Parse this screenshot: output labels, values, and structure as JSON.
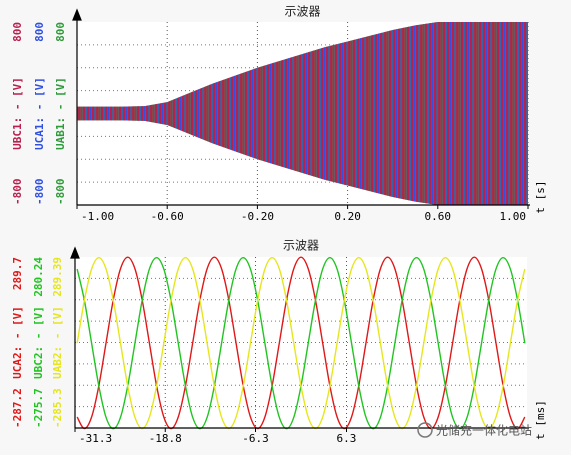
{
  "chart_data": [
    {
      "type": "envelope",
      "title": "示波器",
      "xlabel": "t [s]",
      "x": [
        -1.0,
        -0.9,
        -0.8,
        -0.7,
        -0.6,
        -0.5,
        -0.4,
        -0.3,
        -0.2,
        -0.1,
        0.0,
        0.1,
        0.2,
        0.3,
        0.4,
        0.5,
        0.6,
        0.7,
        0.8,
        0.9,
        1.0
      ],
      "xlim": [
        -1.0,
        1.0
      ],
      "xticks": [
        {
          "value": -1.0,
          "label": "-1.00"
        },
        {
          "value": -0.6,
          "label": "-0.60"
        },
        {
          "value": -0.2,
          "label": "-0.20"
        },
        {
          "value": 0.2,
          "label": "0.20"
        },
        {
          "value": 0.6,
          "label": "0.60"
        },
        {
          "value": 1.0,
          "label": "1.00"
        }
      ],
      "grid": true,
      "series": [
        {
          "name": "UBC1: - [V]",
          "color": "#b8204e",
          "ylim": [
            -800,
            800
          ],
          "yticks": [
            -800,
            800
          ],
          "values": [
            60,
            60,
            60,
            65,
            100,
            180,
            260,
            330,
            400,
            460,
            520,
            580,
            630,
            680,
            730,
            770,
            800,
            800,
            800,
            800,
            800
          ]
        },
        {
          "name": "UCA1: - [V]",
          "color": "#3050e0",
          "ylim": [
            -800,
            800
          ],
          "yticks": [
            -800,
            800
          ],
          "values": [
            60,
            60,
            60,
            65,
            100,
            180,
            260,
            330,
            400,
            460,
            520,
            580,
            630,
            680,
            730,
            770,
            800,
            800,
            800,
            800,
            800
          ]
        },
        {
          "name": "UAB1: - [V]",
          "color": "#2f9a3a",
          "ylim": [
            -800,
            800
          ],
          "yticks": [
            -800,
            800
          ],
          "values": [
            60,
            60,
            60,
            65,
            100,
            180,
            260,
            330,
            400,
            460,
            520,
            580,
            630,
            680,
            730,
            770,
            800,
            800,
            800,
            800,
            800
          ]
        }
      ]
    },
    {
      "type": "line",
      "title": "示波器",
      "xlabel": "t [ms]",
      "x": [
        -31,
        -30,
        -29,
        -28,
        -27,
        -26,
        -25,
        -24,
        -23,
        -22,
        -21,
        -20,
        -19,
        -18,
        -17,
        -16,
        -15,
        -14,
        -13,
        -12,
        -11,
        -10,
        -9,
        -8,
        -7,
        -6,
        -5,
        -4,
        -3,
        -2,
        -1,
        0,
        1,
        2,
        3,
        4,
        5,
        6,
        7,
        8,
        9,
        10,
        11,
        12,
        13,
        14,
        15,
        16,
        17,
        18,
        19,
        20,
        21,
        22,
        23,
        24,
        25,
        26,
        27,
        28,
        29,
        30,
        31
      ],
      "xlim": [
        -31.3,
        31.3
      ],
      "xticks": [
        -31.3,
        -18.8,
        -6.3,
        6.3
      ],
      "grid": true,
      "series": [
        {
          "name": "UCA2: - [V]",
          "color": "#e01818",
          "ylim": [
            -287.2,
            289.7
          ],
          "yticks": [
            -287.2,
            289.7
          ],
          "values": [
            -250,
            -289,
            -250,
            -145,
            0,
            145,
            250,
            289,
            250,
            145,
            0,
            -145,
            -250,
            -289,
            -250,
            -145,
            0,
            145,
            250,
            289,
            250,
            145,
            0,
            -145,
            -250,
            -289,
            -250,
            -145,
            0,
            145,
            250,
            289,
            250,
            145,
            0,
            -145,
            -250,
            -289,
            -250,
            -145,
            0,
            145,
            250,
            289,
            250,
            145,
            0,
            -145,
            -250,
            -289,
            -250,
            -145,
            0,
            145,
            250,
            289,
            250,
            145,
            0,
            -145,
            -250,
            -289,
            -250
          ]
        },
        {
          "name": "UBC2: - [V]",
          "color": "#22c422",
          "ylim": [
            -275.7,
            280.24
          ],
          "yticks": [
            -275.7,
            280.24
          ],
          "values": [
            241,
            139,
            0,
            -139,
            -241,
            -278,
            -241,
            -139,
            0,
            139,
            241,
            278,
            241,
            139,
            0,
            -139,
            -241,
            -278,
            -241,
            -139,
            0,
            139,
            241,
            278,
            241,
            139,
            0,
            -139,
            -241,
            -278,
            -241,
            -139,
            0,
            139,
            241,
            278,
            241,
            139,
            0,
            -139,
            -241,
            -278,
            -241,
            -139,
            0,
            139,
            241,
            278,
            241,
            139,
            0,
            -139,
            -241,
            -278,
            -241,
            -139,
            0,
            139,
            241,
            278,
            241,
            139,
            0
          ]
        },
        {
          "name": "UAB2: - [V]",
          "color": "#e6e61e",
          "ylim": [
            -285.3,
            289.39
          ],
          "yticks": [
            -285.3,
            289.39
          ],
          "values": [
            0,
            144,
            249,
            287,
            249,
            144,
            0,
            -144,
            -249,
            -287,
            -249,
            -144,
            0,
            144,
            249,
            287,
            249,
            144,
            0,
            -144,
            -249,
            -287,
            -249,
            -144,
            0,
            144,
            249,
            287,
            249,
            144,
            0,
            -144,
            -249,
            -287,
            -249,
            -144,
            0,
            144,
            249,
            287,
            249,
            144,
            0,
            -144,
            -249,
            -287,
            -249,
            -144,
            0,
            144,
            249,
            287,
            249,
            144,
            0,
            -144,
            -249,
            -287,
            -249,
            -144,
            0,
            144,
            249
          ]
        }
      ]
    }
  ],
  "watermark": "光储充一体化电站"
}
